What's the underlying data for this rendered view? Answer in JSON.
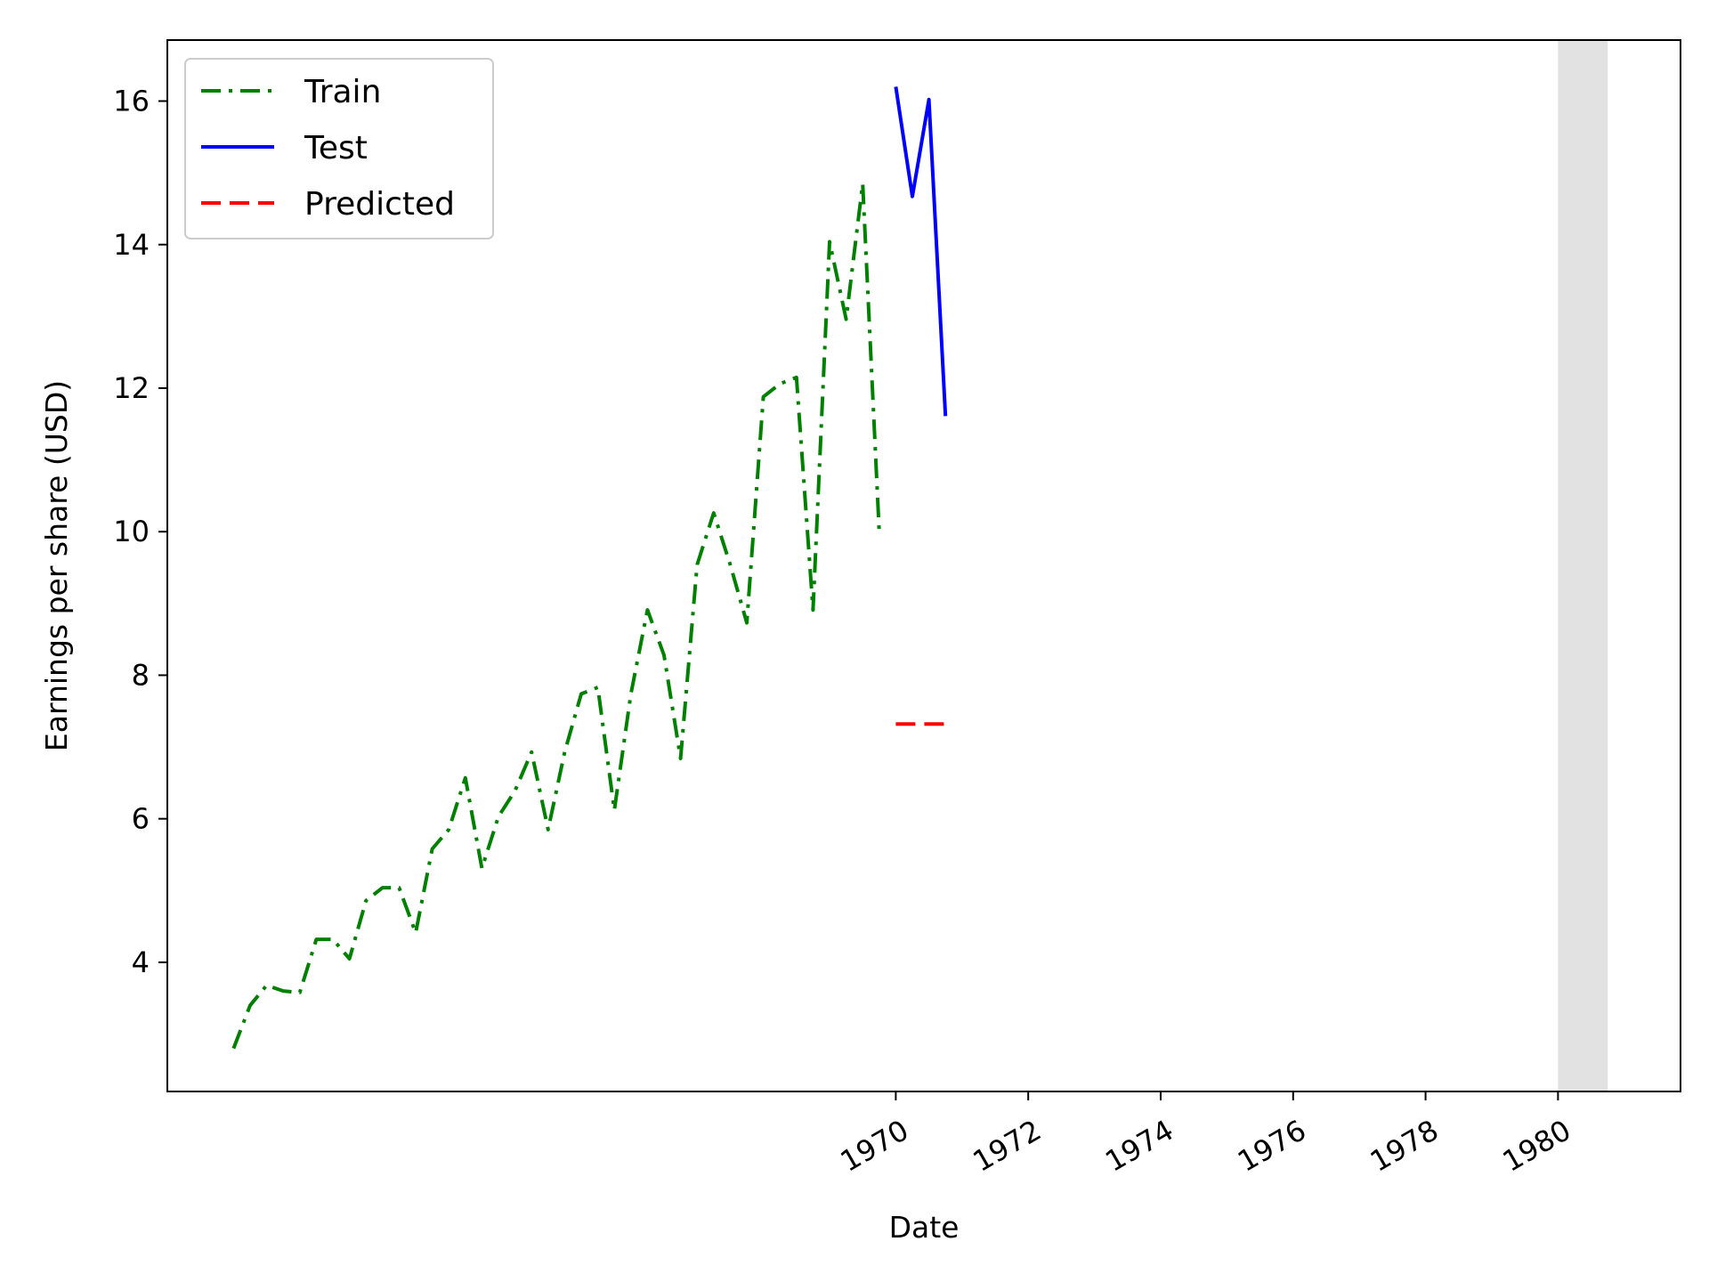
{
  "chart_data": {
    "type": "line",
    "xlabel": "Date",
    "ylabel": "Earnings per share (USD)",
    "xlim": [
      1959.0,
      1981.85
    ],
    "ylim": [
      2.2,
      16.85
    ],
    "xticks": [
      1970,
      1972,
      1974,
      1976,
      1978,
      1980
    ],
    "xtick_labels": [
      "1970",
      "1972",
      "1974",
      "1976",
      "1978",
      "1980"
    ],
    "yticks": [
      4,
      6,
      8,
      10,
      12,
      14,
      16
    ],
    "ytick_labels": [
      "4",
      "6",
      "8",
      "10",
      "12",
      "14",
      "16"
    ],
    "grid": false,
    "legend_position": "top-left",
    "shaded_region": {
      "x": [
        1980.0,
        1980.75
      ],
      "color": "#d8d8d8"
    },
    "series": [
      {
        "name": "Train",
        "style": "dashdot",
        "color": "#008000",
        "x": [
          1960.0,
          1960.25,
          1960.5,
          1960.75,
          1961.0,
          1961.25,
          1961.5,
          1961.75,
          1962.0,
          1962.25,
          1962.5,
          1962.75,
          1963.0,
          1963.25,
          1963.5,
          1963.75,
          1964.0,
          1964.25,
          1964.5,
          1964.75,
          1965.0,
          1965.25,
          1965.5,
          1965.75,
          1966.0,
          1966.25,
          1966.5,
          1966.75,
          1967.0,
          1967.25,
          1967.5,
          1967.75,
          1968.0,
          1968.25,
          1968.5,
          1968.75,
          1969.0,
          1969.25,
          1969.5,
          1969.75
        ],
        "values": [
          2.8,
          3.4,
          3.68,
          3.6,
          3.58,
          4.32,
          4.32,
          4.05,
          4.86,
          5.04,
          5.04,
          4.41,
          5.58,
          5.85,
          6.57,
          5.31,
          6.03,
          6.39,
          6.93,
          5.85,
          6.93,
          7.74,
          7.83,
          6.12,
          7.74,
          8.91,
          8.28,
          6.84,
          9.54,
          10.26,
          9.54,
          8.73,
          11.88,
          12.06,
          12.15,
          8.91,
          14.04,
          12.96,
          14.85,
          9.99
        ]
      },
      {
        "name": "Test",
        "style": "solid",
        "color": "#0000ff",
        "x": [
          1970.0,
          1970.25,
          1970.5,
          1970.75
        ],
        "values": [
          16.2,
          14.67,
          16.02,
          11.61
        ]
      },
      {
        "name": "Predicted",
        "style": "dashed",
        "color": "#ff0000",
        "x": [
          1970.0,
          1970.25,
          1970.5,
          1970.75
        ],
        "values": [
          7.32,
          7.32,
          7.32,
          7.32
        ]
      }
    ]
  }
}
